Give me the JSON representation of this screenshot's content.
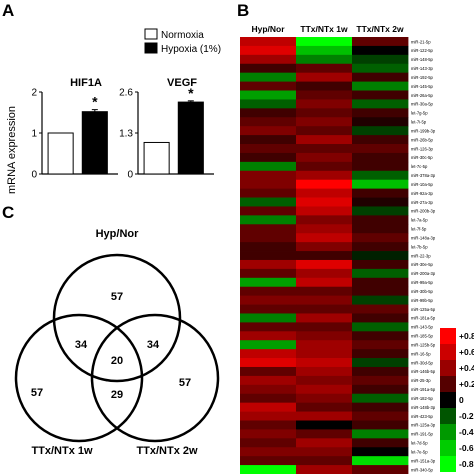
{
  "panels": {
    "a": "A",
    "b": "B",
    "c": "C"
  },
  "bar_legend": [
    {
      "label": "Normoxia",
      "color": "#ffffff"
    },
    {
      "label": "Hypoxia (1%)",
      "color": "#000000"
    }
  ],
  "ylabel": "mRNA expression",
  "venn": {
    "labels": [
      "Hyp/Nor",
      "TTx/NTx 1w",
      "TTx/NTx 2w"
    ],
    "regions": {
      "a_only": "57",
      "b_only": "57",
      "c_only": "57",
      "ab": "34",
      "ac": "34",
      "bc": "29",
      "abc": "20"
    }
  },
  "colorbar": {
    "ticks": [
      "+0.8",
      "+0.6",
      "+0.4",
      "+0.2",
      "0",
      "-0.2",
      "-0.4",
      "-0.6",
      "-0.8"
    ],
    "high_color": "#ff0000",
    "mid_color": "#000000",
    "low_color": "#00ff00"
  },
  "chart_data": [
    {
      "type": "bar",
      "title": "HIF1A",
      "categories": [
        "Normoxia",
        "Hypoxia (1%)"
      ],
      "values": [
        1.0,
        1.52
      ],
      "errors": [
        0,
        0.05
      ],
      "significance": [
        "",
        "*"
      ],
      "ylim": [
        0,
        2
      ],
      "yticks": [
        "0",
        "1",
        "2"
      ],
      "ylabel": "mRNA expression",
      "colors": [
        "#ffffff",
        "#000000"
      ]
    },
    {
      "type": "bar",
      "title": "VEGF",
      "categories": [
        "Normoxia",
        "Hypoxia (1%)"
      ],
      "values": [
        1.0,
        2.28
      ],
      "errors": [
        0,
        0.04
      ],
      "significance": [
        "",
        "*"
      ],
      "ylim": [
        0,
        2.6
      ],
      "yticks": [
        "0",
        "1.3",
        "2.6"
      ],
      "colors": [
        "#ffffff",
        "#000000"
      ]
    },
    {
      "type": "heatmap",
      "columns": [
        "Hyp/Nor",
        "TTx/NTx 1w",
        "TTx/NTx 2w"
      ],
      "rows": [
        "miR-21-5p",
        "miR-122-5p",
        "miR-148-5p",
        "miR-143-3p",
        "miR-192-5p",
        "miR-145-5p",
        "miR-26a-5p",
        "miR-30a-5p",
        "let-7g-5p",
        "let-7i-5p",
        "miR-199b-3p",
        "miR-26b-5p",
        "miR-126-3p",
        "miR-30c-5p",
        "let-7c-5p",
        "miR-378a-3p",
        "miR-10a-5p",
        "miR-92a-3p",
        "miR-27a-3p",
        "miR-200b-3p",
        "let-7a-5p",
        "let-7f-5p",
        "miR-148a-3p",
        "let-7b-5p",
        "miR-22-3p",
        "miR-30e-5p",
        "miR-200a-3p",
        "miR-99a-5p",
        "miR-30b-5p",
        "miR-99b-5p",
        "miR-125a-5p",
        "miR-181a-5p",
        "miR-143-5p",
        "miR-185-5p",
        "miR-125b-5p",
        "miR-16-5p",
        "miR-30d-5p",
        "miR-146b-5p",
        "miR-25-3p",
        "miR-191a-5p",
        "miR-182-5p",
        "miR-148b-3p",
        "miR-423-5p",
        "miR-125a-3p",
        "miR-191-5p",
        "let-7d-5p",
        "let-7e-5p",
        "miR-151a-3p",
        "miR-340-5p"
      ],
      "values": [
        [
          0.6,
          -0.8,
          0.3
        ],
        [
          0.7,
          -0.6,
          0.0
        ],
        [
          0.5,
          -0.4,
          -0.2
        ],
        [
          0.2,
          0.3,
          -0.3
        ],
        [
          -0.4,
          0.5,
          0.2
        ],
        [
          0.3,
          0.2,
          -0.4
        ],
        [
          -0.5,
          0.3,
          0.2
        ],
        [
          -0.3,
          0.4,
          -0.3
        ],
        [
          0.2,
          0.3,
          0.2
        ],
        [
          0.3,
          0.4,
          0.1
        ],
        [
          0.4,
          0.3,
          -0.2
        ],
        [
          0.2,
          0.5,
          0.2
        ],
        [
          0.3,
          0.3,
          0.3
        ],
        [
          0.2,
          0.4,
          0.2
        ],
        [
          -0.4,
          0.3,
          0.2
        ],
        [
          0.4,
          0.5,
          -0.3
        ],
        [
          0.4,
          0.8,
          -0.6
        ],
        [
          0.3,
          0.6,
          0.2
        ],
        [
          -0.3,
          0.7,
          0.1
        ],
        [
          0.3,
          0.6,
          -0.2
        ],
        [
          -0.4,
          0.4,
          0.2
        ],
        [
          0.3,
          0.5,
          0.2
        ],
        [
          0.3,
          0.6,
          0.3
        ],
        [
          0.2,
          0.4,
          0.2
        ],
        [
          0.2,
          0.2,
          -0.1
        ],
        [
          0.5,
          0.7,
          0.2
        ],
        [
          0.3,
          0.5,
          -0.3
        ],
        [
          -0.5,
          0.6,
          0.2
        ],
        [
          0.3,
          0.3,
          0.2
        ],
        [
          0.4,
          0.4,
          -0.2
        ],
        [
          0.3,
          0.3,
          0.3
        ],
        [
          -0.4,
          0.5,
          0.2
        ],
        [
          0.3,
          0.3,
          -0.3
        ],
        [
          0.5,
          0.4,
          0.2
        ],
        [
          -0.5,
          0.5,
          0.3
        ],
        [
          0.6,
          0.5,
          0.2
        ],
        [
          0.7,
          0.6,
          -0.2
        ],
        [
          0.3,
          0.5,
          0.2
        ],
        [
          0.5,
          0.4,
          0.3
        ],
        [
          0.4,
          0.5,
          0.2
        ],
        [
          0.3,
          0.4,
          -0.3
        ],
        [
          0.6,
          0.3,
          0.2
        ],
        [
          0.5,
          0.5,
          0.3
        ],
        [
          0.3,
          0.0,
          0.2
        ],
        [
          0.4,
          0.3,
          -0.4
        ],
        [
          0.3,
          0.5,
          0.2
        ],
        [
          0.4,
          0.4,
          0.0
        ],
        [
          0.3,
          0.3,
          -0.7
        ],
        [
          -0.8,
          0.5,
          0.3
        ]
      ],
      "colorscale": [
        "#00ff00",
        "#000000",
        "#ff0000"
      ],
      "vlim": [
        -0.8,
        0.8
      ]
    }
  ]
}
